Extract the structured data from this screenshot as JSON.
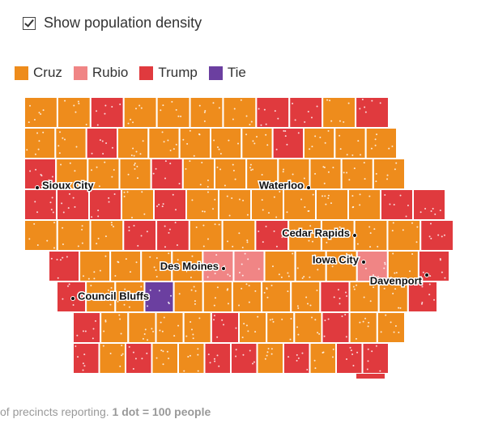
{
  "controls": {
    "checkbox_label": "Show population density"
  },
  "legend": [
    {
      "name": "Cruz",
      "color": "#ee8c1c"
    },
    {
      "name": "Rubio",
      "color": "#f08585"
    },
    {
      "name": "Trump",
      "color": "#e03a3e"
    },
    {
      "name": "Tie",
      "color": "#6b3fa0"
    }
  ],
  "cities": [
    "Sioux City",
    "Waterloo",
    "Cedar Rapids",
    "Iowa City",
    "Des Moines",
    "Council Bluffs",
    "Davenport"
  ],
  "footer": {
    "text": "of precincts reporting.",
    "emphasis": "1 dot = 100 people"
  }
}
